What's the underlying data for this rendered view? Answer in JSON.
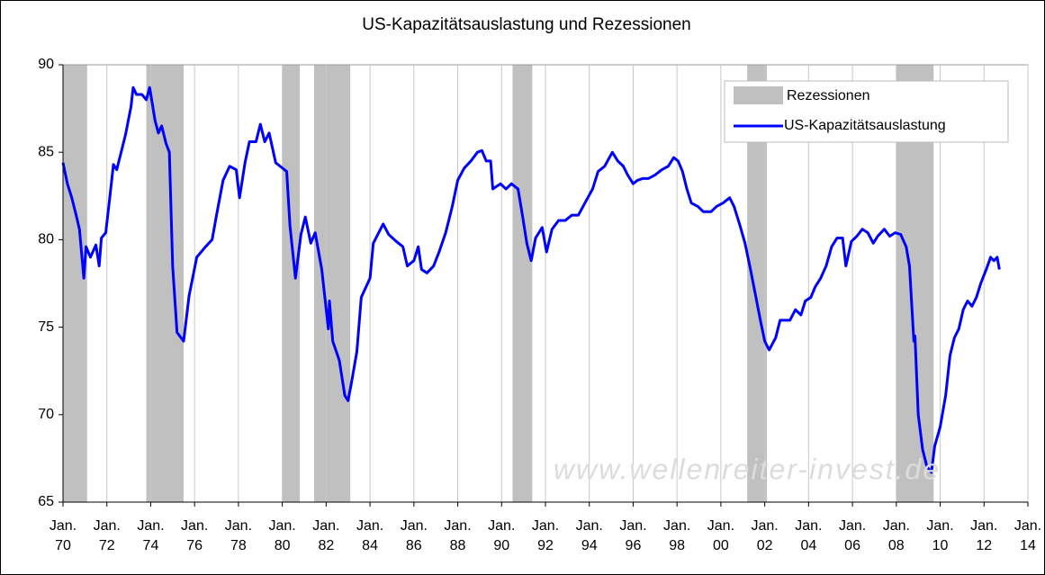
{
  "chart_data": {
    "type": "line",
    "title": "US-Kapazitätsauslastung und Rezessionen",
    "annotation": "www.wellenreiter-invest.de",
    "xlim": [
      1970,
      2014
    ],
    "xticks": [
      {
        "value": 1970,
        "label": "Jan. 70"
      },
      {
        "value": 1972,
        "label": "Jan. 72"
      },
      {
        "value": 1974,
        "label": "Jan. 74"
      },
      {
        "value": 1976,
        "label": "Jan. 76"
      },
      {
        "value": 1978,
        "label": "Jan. 78"
      },
      {
        "value": 1980,
        "label": "Jan. 80"
      },
      {
        "value": 1982,
        "label": "Jan. 82"
      },
      {
        "value": 1984,
        "label": "Jan. 84"
      },
      {
        "value": 1986,
        "label": "Jan. 86"
      },
      {
        "value": 1988,
        "label": "Jan. 88"
      },
      {
        "value": 1990,
        "label": "Jan. 90"
      },
      {
        "value": 1992,
        "label": "Jan. 92"
      },
      {
        "value": 1994,
        "label": "Jan. 94"
      },
      {
        "value": 1996,
        "label": "Jan. 96"
      },
      {
        "value": 1998,
        "label": "Jan. 98"
      },
      {
        "value": 2000,
        "label": "Jan. 00"
      },
      {
        "value": 2002,
        "label": "Jan. 02"
      },
      {
        "value": 2004,
        "label": "Jan. 04"
      },
      {
        "value": 2006,
        "label": "Jan. 06"
      },
      {
        "value": 2008,
        "label": "Jan. 08"
      },
      {
        "value": 2010,
        "label": "Jan. 10"
      },
      {
        "value": 2012,
        "label": "Jan. 12"
      },
      {
        "value": 2014,
        "label": "Jan. 14"
      }
    ],
    "ylim": [
      65,
      90
    ],
    "yticks": [
      65,
      70,
      75,
      80,
      85,
      90
    ],
    "grid": "x",
    "legend": "top-right",
    "recessions": {
      "name": "Rezessionen",
      "color": "#c0c0c0",
      "start": [
        1970.0,
        1973.8,
        1980.0,
        1981.45,
        1990.5,
        2001.2,
        2008.0
      ],
      "end": [
        1971.1,
        1975.5,
        1980.8,
        1983.1,
        1991.4,
        2002.1,
        2009.7
      ]
    },
    "series": [
      {
        "name": "US-Kapazitätsauslastung",
        "color": "#0000ff",
        "x": [
          1970.0,
          1970.2,
          1970.4,
          1970.6,
          1970.75,
          1970.95,
          1971.05,
          1971.25,
          1971.5,
          1971.65,
          1971.75,
          1971.95,
          1972.15,
          1972.3,
          1972.45,
          1972.65,
          1972.85,
          1973.1,
          1973.2,
          1973.35,
          1973.6,
          1973.8,
          1973.95,
          1974.2,
          1974.35,
          1974.5,
          1974.7,
          1974.85,
          1975.0,
          1975.2,
          1975.5,
          1975.75,
          1976.1,
          1976.5,
          1976.8,
          1977.0,
          1977.3,
          1977.6,
          1977.9,
          1978.05,
          1978.3,
          1978.5,
          1978.8,
          1979.0,
          1979.2,
          1979.4,
          1979.7,
          1979.9,
          1980.2,
          1980.35,
          1980.6,
          1980.85,
          1981.05,
          1981.3,
          1981.5,
          1981.8,
          1982.1,
          1982.15,
          1982.3,
          1982.6,
          1982.85,
          1983.0,
          1983.15,
          1983.4,
          1983.6,
          1984.0,
          1984.15,
          1984.6,
          1984.85,
          1985.2,
          1985.5,
          1985.7,
          1986.0,
          1986.2,
          1986.35,
          1986.6,
          1986.9,
          1987.15,
          1987.45,
          1987.75,
          1988.0,
          1988.3,
          1988.6,
          1988.9,
          1989.1,
          1989.3,
          1989.5,
          1989.6,
          1989.95,
          1990.2,
          1990.45,
          1990.75,
          1990.95,
          1991.15,
          1991.35,
          1991.55,
          1991.85,
          1992.05,
          1992.3,
          1992.6,
          1992.9,
          1993.2,
          1993.5,
          1993.8,
          1994.15,
          1994.4,
          1994.7,
          1995.05,
          1995.3,
          1995.55,
          1995.75,
          1996.0,
          1996.2,
          1996.45,
          1996.7,
          1997.0,
          1997.3,
          1997.6,
          1997.85,
          1998.05,
          1998.25,
          1998.45,
          1998.65,
          1998.95,
          1999.2,
          1999.55,
          1999.8,
          2000.1,
          2000.4,
          2000.6,
          2000.85,
          2001.1,
          2001.35,
          2001.6,
          2001.8,
          2002.0,
          2002.2,
          2002.5,
          2002.7,
          2002.9,
          2003.15,
          2003.4,
          2003.65,
          2003.85,
          2004.1,
          2004.3,
          2004.55,
          2004.8,
          2005.05,
          2005.3,
          2005.55,
          2005.7,
          2005.95,
          2006.2,
          2006.45,
          2006.7,
          2006.95,
          2007.15,
          2007.45,
          2007.7,
          2007.95,
          2008.2,
          2008.45,
          2008.6,
          2008.8,
          2008.85,
          2009.0,
          2009.2,
          2009.4,
          2009.6,
          2009.75,
          2010.0,
          2010.25,
          2010.45,
          2010.65,
          2010.85,
          2011.05,
          2011.25,
          2011.45,
          2011.65,
          2011.85,
          2012.1,
          2012.3,
          2012.45,
          2012.6,
          2012.7
        ],
        "values": [
          84.4,
          83.2,
          82.4,
          81.4,
          80.6,
          77.8,
          79.6,
          79.0,
          79.7,
          78.5,
          80.1,
          80.4,
          82.6,
          84.3,
          84.0,
          85.0,
          86.0,
          87.6,
          88.7,
          88.3,
          88.3,
          88.0,
          88.7,
          86.8,
          86.1,
          86.5,
          85.5,
          85.0,
          78.5,
          74.7,
          74.2,
          76.8,
          79.0,
          79.6,
          80.0,
          81.4,
          83.4,
          84.2,
          84.0,
          82.4,
          84.4,
          85.6,
          85.6,
          86.6,
          85.6,
          86.1,
          84.4,
          84.2,
          83.9,
          80.8,
          77.8,
          80.3,
          81.3,
          79.8,
          80.4,
          78.3,
          74.9,
          76.5,
          74.2,
          73.1,
          71.1,
          70.8,
          71.8,
          73.6,
          76.7,
          77.8,
          79.8,
          80.9,
          80.3,
          79.9,
          79.6,
          78.5,
          78.8,
          79.6,
          78.3,
          78.1,
          78.5,
          79.3,
          80.4,
          81.9,
          83.4,
          84.1,
          84.5,
          85.0,
          85.1,
          84.5,
          84.5,
          82.9,
          83.2,
          82.9,
          83.2,
          82.9,
          81.4,
          79.8,
          78.8,
          80.1,
          80.7,
          79.3,
          80.6,
          81.1,
          81.1,
          81.4,
          81.4,
          82.1,
          82.9,
          83.9,
          84.2,
          85.0,
          84.5,
          84.2,
          83.7,
          83.2,
          83.4,
          83.5,
          83.5,
          83.7,
          84.0,
          84.2,
          84.7,
          84.5,
          83.9,
          82.9,
          82.1,
          81.9,
          81.6,
          81.6,
          81.9,
          82.1,
          82.4,
          81.9,
          80.9,
          79.8,
          78.3,
          76.7,
          75.4,
          74.2,
          73.7,
          74.4,
          75.4,
          75.4,
          75.4,
          76.0,
          75.7,
          76.5,
          76.7,
          77.3,
          77.8,
          78.5,
          79.6,
          80.1,
          80.1,
          78.5,
          79.9,
          80.2,
          80.6,
          80.4,
          79.8,
          80.2,
          80.6,
          80.2,
          80.4,
          80.3,
          79.6,
          78.5,
          74.2,
          74.5,
          70.0,
          68.0,
          67.0,
          66.7,
          68.2,
          69.3,
          71.1,
          73.4,
          74.4,
          74.9,
          76.0,
          76.5,
          76.2,
          76.7,
          77.5,
          78.3,
          79.0,
          78.8,
          79.0,
          78.3
        ]
      }
    ]
  }
}
